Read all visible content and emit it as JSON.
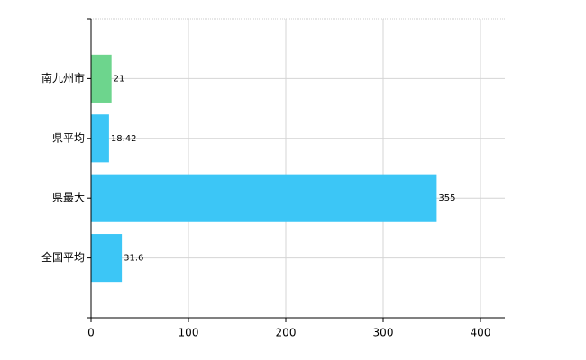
{
  "chart_data": {
    "type": "bar",
    "orientation": "horizontal",
    "categories": [
      "南九州市",
      "県平均",
      "県最大",
      "全国平均"
    ],
    "values": [
      21,
      18.42,
      355,
      31.6
    ],
    "colors": [
      "#6dd58d",
      "#3cc6f6",
      "#3cc6f6",
      "#3cc6f6"
    ],
    "xlim": [
      0,
      425
    ],
    "xticks": [
      0,
      100,
      200,
      300,
      400
    ],
    "grid": true
  }
}
